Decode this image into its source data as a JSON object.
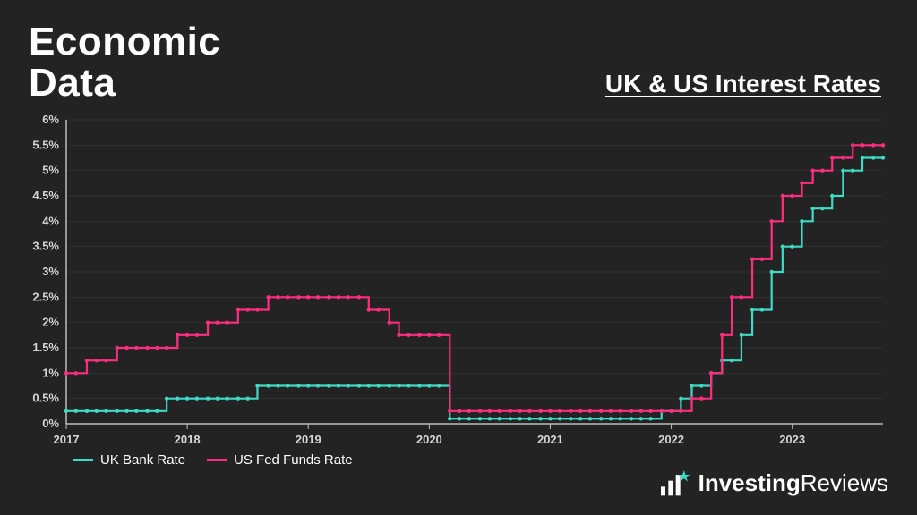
{
  "title": "Economic\nData",
  "subtitle": "UK & US Interest Rates",
  "brand": {
    "text1": "Investing",
    "text2": "Reviews",
    "bar_color": "#ffffff",
    "star_color": "#3fd9c4"
  },
  "legend": [
    {
      "label": "UK Bank Rate",
      "color": "#3fd9c4"
    },
    {
      "label": "US Fed Funds Rate",
      "color": "#ff2e7e"
    }
  ],
  "chart": {
    "type": "step-line",
    "background": "#232323",
    "grid_color": "#4a4a4a",
    "axis_color": "#bdbdbd",
    "tick_font_color": "#d6d6d6",
    "tick_fontsize": 13,
    "marker_radius": 2.2,
    "line_width": 2.2,
    "x": {
      "min": 2017.0,
      "max": 2023.75,
      "ticks": [
        2017,
        2018,
        2019,
        2020,
        2021,
        2022,
        2023
      ],
      "tick_labels": [
        "2017",
        "2018",
        "2019",
        "2020",
        "2021",
        "2022",
        "2023"
      ]
    },
    "y": {
      "min": 0,
      "max": 6,
      "ticks": [
        0,
        0.5,
        1,
        1.5,
        2,
        2.5,
        3,
        3.5,
        4,
        4.5,
        5,
        5.5,
        6
      ],
      "tick_labels": [
        "0%",
        "0.5%",
        "1%",
        "1.5%",
        "2%",
        "2.5%",
        "3%",
        "3.5%",
        "4%",
        "4.5%",
        "5%",
        "5.5%",
        "6%"
      ]
    },
    "series": [
      {
        "name": "UK Bank Rate",
        "color": "#3fd9c4",
        "points": [
          [
            2017.0,
            0.25
          ],
          [
            2017.08,
            0.25
          ],
          [
            2017.17,
            0.25
          ],
          [
            2017.25,
            0.25
          ],
          [
            2017.33,
            0.25
          ],
          [
            2017.42,
            0.25
          ],
          [
            2017.5,
            0.25
          ],
          [
            2017.58,
            0.25
          ],
          [
            2017.67,
            0.25
          ],
          [
            2017.75,
            0.25
          ],
          [
            2017.83,
            0.5
          ],
          [
            2017.92,
            0.5
          ],
          [
            2018.0,
            0.5
          ],
          [
            2018.08,
            0.5
          ],
          [
            2018.17,
            0.5
          ],
          [
            2018.25,
            0.5
          ],
          [
            2018.33,
            0.5
          ],
          [
            2018.42,
            0.5
          ],
          [
            2018.5,
            0.5
          ],
          [
            2018.58,
            0.75
          ],
          [
            2018.67,
            0.75
          ],
          [
            2018.75,
            0.75
          ],
          [
            2018.83,
            0.75
          ],
          [
            2018.92,
            0.75
          ],
          [
            2019.0,
            0.75
          ],
          [
            2019.08,
            0.75
          ],
          [
            2019.17,
            0.75
          ],
          [
            2019.25,
            0.75
          ],
          [
            2019.33,
            0.75
          ],
          [
            2019.42,
            0.75
          ],
          [
            2019.5,
            0.75
          ],
          [
            2019.58,
            0.75
          ],
          [
            2019.67,
            0.75
          ],
          [
            2019.75,
            0.75
          ],
          [
            2019.83,
            0.75
          ],
          [
            2019.92,
            0.75
          ],
          [
            2020.0,
            0.75
          ],
          [
            2020.08,
            0.75
          ],
          [
            2020.17,
            0.1
          ],
          [
            2020.25,
            0.1
          ],
          [
            2020.33,
            0.1
          ],
          [
            2020.42,
            0.1
          ],
          [
            2020.5,
            0.1
          ],
          [
            2020.58,
            0.1
          ],
          [
            2020.67,
            0.1
          ],
          [
            2020.75,
            0.1
          ],
          [
            2020.83,
            0.1
          ],
          [
            2020.92,
            0.1
          ],
          [
            2021.0,
            0.1
          ],
          [
            2021.08,
            0.1
          ],
          [
            2021.17,
            0.1
          ],
          [
            2021.25,
            0.1
          ],
          [
            2021.33,
            0.1
          ],
          [
            2021.42,
            0.1
          ],
          [
            2021.5,
            0.1
          ],
          [
            2021.58,
            0.1
          ],
          [
            2021.67,
            0.1
          ],
          [
            2021.75,
            0.1
          ],
          [
            2021.83,
            0.1
          ],
          [
            2021.92,
            0.25
          ],
          [
            2022.0,
            0.25
          ],
          [
            2022.08,
            0.5
          ],
          [
            2022.17,
            0.75
          ],
          [
            2022.25,
            0.75
          ],
          [
            2022.33,
            1.0
          ],
          [
            2022.42,
            1.25
          ],
          [
            2022.5,
            1.25
          ],
          [
            2022.58,
            1.75
          ],
          [
            2022.67,
            2.25
          ],
          [
            2022.75,
            2.25
          ],
          [
            2022.83,
            3.0
          ],
          [
            2022.92,
            3.5
          ],
          [
            2023.0,
            3.5
          ],
          [
            2023.08,
            4.0
          ],
          [
            2023.17,
            4.25
          ],
          [
            2023.25,
            4.25
          ],
          [
            2023.33,
            4.5
          ],
          [
            2023.42,
            5.0
          ],
          [
            2023.5,
            5.0
          ],
          [
            2023.58,
            5.25
          ],
          [
            2023.67,
            5.25
          ],
          [
            2023.75,
            5.25
          ]
        ]
      },
      {
        "name": "US Fed Funds Rate",
        "color": "#ff2e7e",
        "points": [
          [
            2017.0,
            1.0
          ],
          [
            2017.08,
            1.0
          ],
          [
            2017.17,
            1.25
          ],
          [
            2017.25,
            1.25
          ],
          [
            2017.33,
            1.25
          ],
          [
            2017.42,
            1.5
          ],
          [
            2017.5,
            1.5
          ],
          [
            2017.58,
            1.5
          ],
          [
            2017.67,
            1.5
          ],
          [
            2017.75,
            1.5
          ],
          [
            2017.83,
            1.5
          ],
          [
            2017.92,
            1.75
          ],
          [
            2018.0,
            1.75
          ],
          [
            2018.08,
            1.75
          ],
          [
            2018.17,
            2.0
          ],
          [
            2018.25,
            2.0
          ],
          [
            2018.33,
            2.0
          ],
          [
            2018.42,
            2.25
          ],
          [
            2018.5,
            2.25
          ],
          [
            2018.58,
            2.25
          ],
          [
            2018.67,
            2.5
          ],
          [
            2018.75,
            2.5
          ],
          [
            2018.83,
            2.5
          ],
          [
            2018.92,
            2.5
          ],
          [
            2019.0,
            2.5
          ],
          [
            2019.08,
            2.5
          ],
          [
            2019.17,
            2.5
          ],
          [
            2019.25,
            2.5
          ],
          [
            2019.33,
            2.5
          ],
          [
            2019.42,
            2.5
          ],
          [
            2019.5,
            2.25
          ],
          [
            2019.58,
            2.25
          ],
          [
            2019.67,
            2.0
          ],
          [
            2019.75,
            1.75
          ],
          [
            2019.83,
            1.75
          ],
          [
            2019.92,
            1.75
          ],
          [
            2020.0,
            1.75
          ],
          [
            2020.08,
            1.75
          ],
          [
            2020.17,
            0.25
          ],
          [
            2020.25,
            0.25
          ],
          [
            2020.33,
            0.25
          ],
          [
            2020.42,
            0.25
          ],
          [
            2020.5,
            0.25
          ],
          [
            2020.58,
            0.25
          ],
          [
            2020.67,
            0.25
          ],
          [
            2020.75,
            0.25
          ],
          [
            2020.83,
            0.25
          ],
          [
            2020.92,
            0.25
          ],
          [
            2021.0,
            0.25
          ],
          [
            2021.08,
            0.25
          ],
          [
            2021.17,
            0.25
          ],
          [
            2021.25,
            0.25
          ],
          [
            2021.33,
            0.25
          ],
          [
            2021.42,
            0.25
          ],
          [
            2021.5,
            0.25
          ],
          [
            2021.58,
            0.25
          ],
          [
            2021.67,
            0.25
          ],
          [
            2021.75,
            0.25
          ],
          [
            2021.83,
            0.25
          ],
          [
            2021.92,
            0.25
          ],
          [
            2022.0,
            0.25
          ],
          [
            2022.08,
            0.25
          ],
          [
            2022.17,
            0.5
          ],
          [
            2022.25,
            0.5
          ],
          [
            2022.33,
            1.0
          ],
          [
            2022.42,
            1.75
          ],
          [
            2022.5,
            2.5
          ],
          [
            2022.58,
            2.5
          ],
          [
            2022.67,
            3.25
          ],
          [
            2022.75,
            3.25
          ],
          [
            2022.83,
            4.0
          ],
          [
            2022.92,
            4.5
          ],
          [
            2023.0,
            4.5
          ],
          [
            2023.08,
            4.75
          ],
          [
            2023.17,
            5.0
          ],
          [
            2023.25,
            5.0
          ],
          [
            2023.33,
            5.25
          ],
          [
            2023.42,
            5.25
          ],
          [
            2023.5,
            5.5
          ],
          [
            2023.58,
            5.5
          ],
          [
            2023.67,
            5.5
          ],
          [
            2023.75,
            5.5
          ]
        ]
      }
    ]
  }
}
